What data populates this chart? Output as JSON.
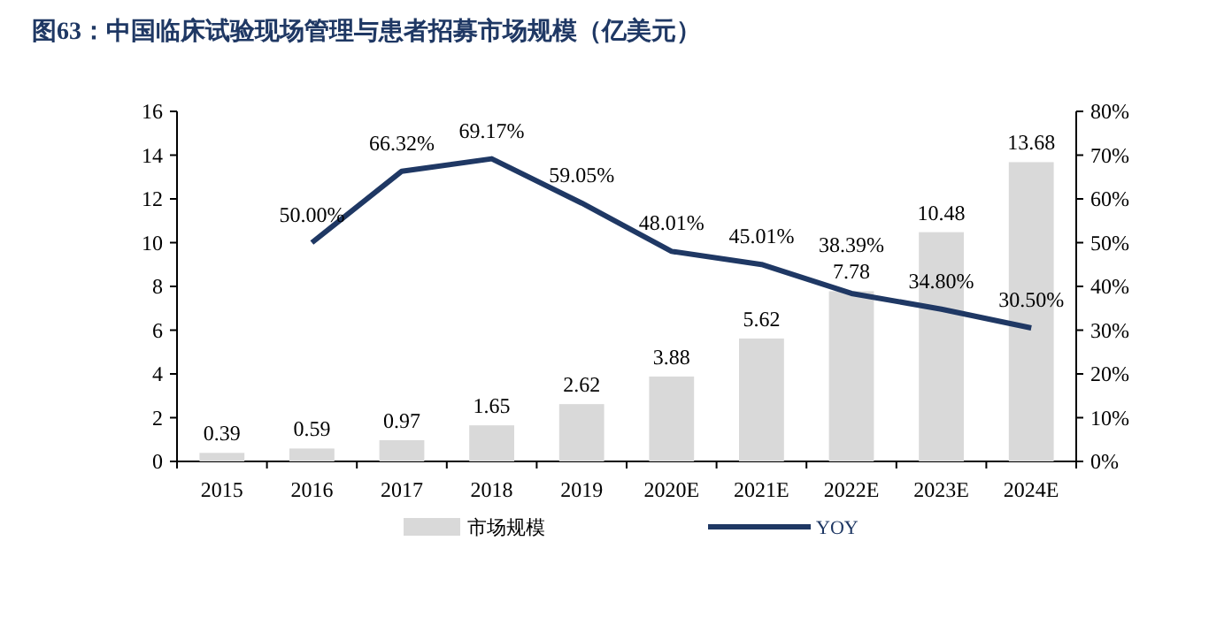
{
  "chart_data": {
    "type": "bar",
    "title": "图63：中国临床试验现场管理与患者招募市场规模（亿美元）",
    "categories": [
      "2015",
      "2016",
      "2017",
      "2018",
      "2019",
      "2020E",
      "2021E",
      "2022E",
      "2023E",
      "2024E"
    ],
    "series": [
      {
        "name": "市场规模",
        "color": "#d9d9d9",
        "values": [
          0.39,
          0.59,
          0.97,
          1.65,
          2.62,
          3.88,
          5.62,
          7.78,
          10.48,
          13.68
        ],
        "value_labels": [
          "0.39",
          "0.59",
          "0.97",
          "1.65",
          "2.62",
          "3.88",
          "5.62",
          "7.78",
          "10.48",
          "13.68"
        ]
      },
      {
        "name": "YOY",
        "type": "line",
        "axis": "y2",
        "color": "#1f3864",
        "values": [
          null,
          50.0,
          66.32,
          69.17,
          59.05,
          48.01,
          45.01,
          38.39,
          34.8,
          30.5
        ],
        "value_labels": [
          null,
          "50.00%",
          "66.32%",
          "69.17%",
          "59.05%",
          "48.01%",
          "45.01%",
          "38.39%",
          "34.80%",
          "30.50%"
        ]
      }
    ],
    "ylim": [
      0,
      16
    ],
    "yticks": [
      0,
      2,
      4,
      6,
      8,
      10,
      12,
      14,
      16
    ],
    "y2lim": [
      0,
      80
    ],
    "y2ticks": [
      {
        "value": 0,
        "label": "0%"
      },
      {
        "value": 10,
        "label": "10%"
      },
      {
        "value": 20,
        "label": "20%"
      },
      {
        "value": 30,
        "label": "30%"
      },
      {
        "value": 40,
        "label": "40%"
      },
      {
        "value": 50,
        "label": "50%"
      },
      {
        "value": 60,
        "label": "60%"
      },
      {
        "value": 70,
        "label": "70%"
      },
      {
        "value": 80,
        "label": "80%"
      }
    ],
    "legend": "bottom",
    "grid": false
  }
}
